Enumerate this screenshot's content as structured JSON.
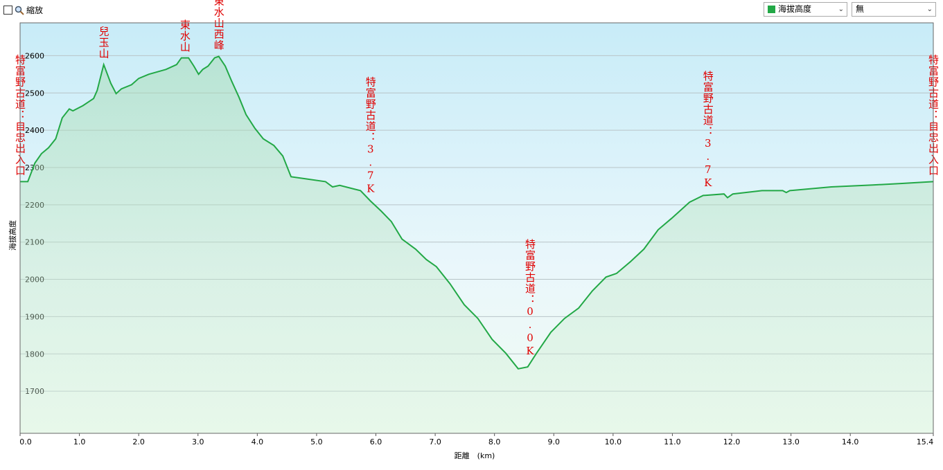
{
  "toolbar": {
    "zoom_label": "縮放",
    "metric": "海拔高度",
    "overlay": "無"
  },
  "chart_data": {
    "type": "line",
    "x_label": "距離　(km)",
    "y_label": "海拔高度",
    "color": "#22a846",
    "x": [
      0,
      0.13,
      0.25,
      0.36,
      0.48,
      0.6,
      0.71,
      0.83,
      0.89,
      1.06,
      1.24,
      1.3,
      1.41,
      1.53,
      1.62,
      1.71,
      1.88,
      2.0,
      2.17,
      2.46,
      2.64,
      2.72,
      2.84,
      2.93,
      3.01,
      3.08,
      3.17,
      3.28,
      3.35,
      3.46,
      3.57,
      3.69,
      3.81,
      3.96,
      4.1,
      4.28,
      4.43,
      4.57,
      4.8,
      5.15,
      5.27,
      5.39,
      5.74,
      5.91,
      6.09,
      6.26,
      6.44,
      6.67,
      6.85,
      7.02,
      7.25,
      7.49,
      7.72,
      7.96,
      8.19,
      8.4,
      8.56,
      8.71,
      8.95,
      9.18,
      9.42,
      9.65,
      9.88,
      10.06,
      10.29,
      10.52,
      10.76,
      10.99,
      11.29,
      11.52,
      11.87,
      11.93,
      12.02,
      12.51,
      12.86,
      12.92,
      12.98,
      13.68,
      14.38,
      14.85,
      15.4
    ],
    "values": [
      2262,
      2262,
      2312,
      2337,
      2353,
      2377,
      2433,
      2457,
      2452,
      2466,
      2485,
      2507,
      2576,
      2526,
      2498,
      2511,
      2522,
      2539,
      2550,
      2563,
      2576,
      2594,
      2594,
      2572,
      2550,
      2563,
      2572,
      2594,
      2598,
      2572,
      2531,
      2489,
      2442,
      2405,
      2377,
      2359,
      2331,
      2275,
      2270,
      2262,
      2248,
      2252,
      2238,
      2210,
      2183,
      2155,
      2108,
      2081,
      2053,
      2034,
      1988,
      1932,
      1895,
      1839,
      1802,
      1760,
      1765,
      1802,
      1858,
      1895,
      1923,
      1969,
      2006,
      2016,
      2047,
      2081,
      2133,
      2164,
      2207,
      2225,
      2229,
      2219,
      2229,
      2238,
      2238,
      2233,
      2238,
      2248,
      2253,
      2257,
      2262
    ],
    "xlim": [
      0,
      15.4
    ],
    "ylim": [
      1587,
      2688
    ],
    "xticks": [
      {
        "value": 0,
        "label": "0.0"
      },
      {
        "value": 1,
        "label": "1.0"
      },
      {
        "value": 2,
        "label": "2.0"
      },
      {
        "value": 3,
        "label": "3.0"
      },
      {
        "value": 4,
        "label": "4.0"
      },
      {
        "value": 5,
        "label": "5.0"
      },
      {
        "value": 6,
        "label": "6.0"
      },
      {
        "value": 7,
        "label": "7.0"
      },
      {
        "value": 8,
        "label": "8.0"
      },
      {
        "value": 9,
        "label": "9.0"
      },
      {
        "value": 10,
        "label": "10.0"
      },
      {
        "value": 11,
        "label": "11.0"
      },
      {
        "value": 12,
        "label": "12.0"
      },
      {
        "value": 13,
        "label": "13.0"
      },
      {
        "value": 14,
        "label": "14.0"
      },
      15.4
    ],
    "yticks": [
      1700,
      1800,
      1900,
      2000,
      2100,
      2200,
      2300,
      2400,
      2500,
      2600
    ],
    "grid": true,
    "annotations": [
      {
        "text": "兒玉山",
        "x": 1.41
      },
      {
        "text": "東水山",
        "x": 2.78
      },
      {
        "text": "東水山西峰",
        "x": 3.35
      },
      {
        "text": "特富野古道：3.7K",
        "x": 5.91
      },
      {
        "text": "特富野古道：0.0K",
        "x": 8.6
      },
      {
        "text": "特富野古道：3.7K",
        "x": 11.6
      },
      {
        "text": "特富野古道：自忠出入口",
        "x": 0
      },
      {
        "text": "特富野古道：自忠出入口",
        "x": 15.4
      }
    ]
  }
}
